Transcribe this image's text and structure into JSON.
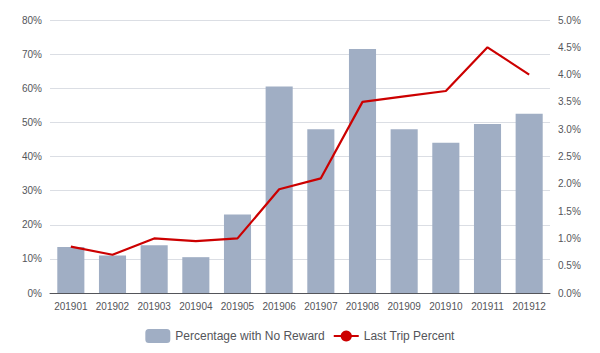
{
  "chart_data": {
    "type": "bar",
    "categories": [
      "201901",
      "201902",
      "201903",
      "201904",
      "201905",
      "201906",
      "201907",
      "201908",
      "201909",
      "201910",
      "201911",
      "201912"
    ],
    "series": [
      {
        "name": "Percentage with No Reward",
        "type": "bar",
        "color": "#a0aec4",
        "values": [
          0.135,
          0.11,
          0.14,
          0.105,
          0.23,
          0.605,
          0.48,
          0.715,
          0.48,
          0.44,
          0.495,
          0.525
        ]
      },
      {
        "name": "Last Trip Percent",
        "type": "line",
        "color": "#cc0000",
        "axis": "y2",
        "values": [
          0.0085,
          0.007,
          0.01,
          0.0095,
          0.01,
          0.019,
          0.021,
          0.035,
          0.036,
          0.037,
          0.045,
          0.04
        ]
      }
    ],
    "ylim": [
      0,
      0.8
    ],
    "yticks": [
      {
        "value": 0.0,
        "label": "0%"
      },
      {
        "value": 0.1,
        "label": "10%"
      },
      {
        "value": 0.2,
        "label": "20%"
      },
      {
        "value": 0.3,
        "label": "30%"
      },
      {
        "value": 0.4,
        "label": "40%"
      },
      {
        "value": 0.5,
        "label": "50%"
      },
      {
        "value": 0.6,
        "label": "60%"
      },
      {
        "value": 0.7,
        "label": "70%"
      },
      {
        "value": 0.8,
        "label": "80%"
      }
    ],
    "y2lim": [
      0.0,
      0.05
    ],
    "y2ticks": [
      {
        "value": 0.0,
        "label": "0.0%"
      },
      {
        "value": 0.005,
        "label": "0.5%"
      },
      {
        "value": 0.01,
        "label": "1.0%"
      },
      {
        "value": 0.015,
        "label": "1.5%"
      },
      {
        "value": 0.02,
        "label": "2.0%"
      },
      {
        "value": 0.025,
        "label": "2.5%"
      },
      {
        "value": 0.03,
        "label": "3.0%"
      },
      {
        "value": 0.035,
        "label": "3.5%"
      },
      {
        "value": 0.04,
        "label": "4.0%"
      },
      {
        "value": 0.045,
        "label": "4.5%"
      },
      {
        "value": 0.05,
        "label": "5.0%"
      }
    ],
    "grid": true,
    "legend": "bottom"
  }
}
